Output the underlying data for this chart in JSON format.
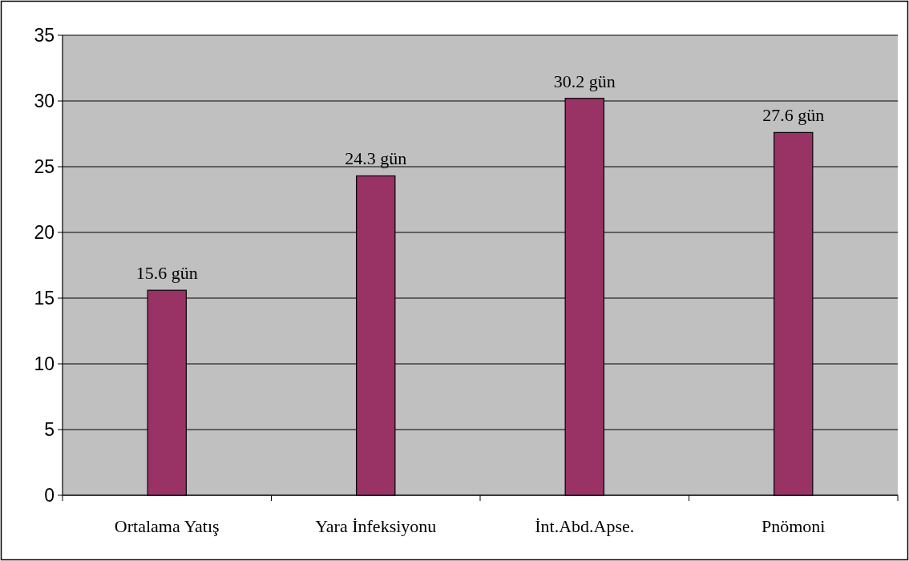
{
  "chart_data": {
    "type": "bar",
    "categories": [
      "Ortalama Yatış",
      "Yara İnfeksiyonu",
      "İnt.Abd.Apse.",
      "Pnömoni"
    ],
    "values": [
      15.6,
      24.3,
      30.2,
      27.6
    ],
    "value_labels": [
      "15.6 gün",
      "24.3 gün",
      "30.2 gün",
      "27.6 gün"
    ],
    "color": "#993366",
    "ylim": [
      0,
      35
    ],
    "yticks": [
      0,
      5,
      10,
      15,
      20,
      25,
      30,
      35
    ],
    "grid": "y"
  }
}
